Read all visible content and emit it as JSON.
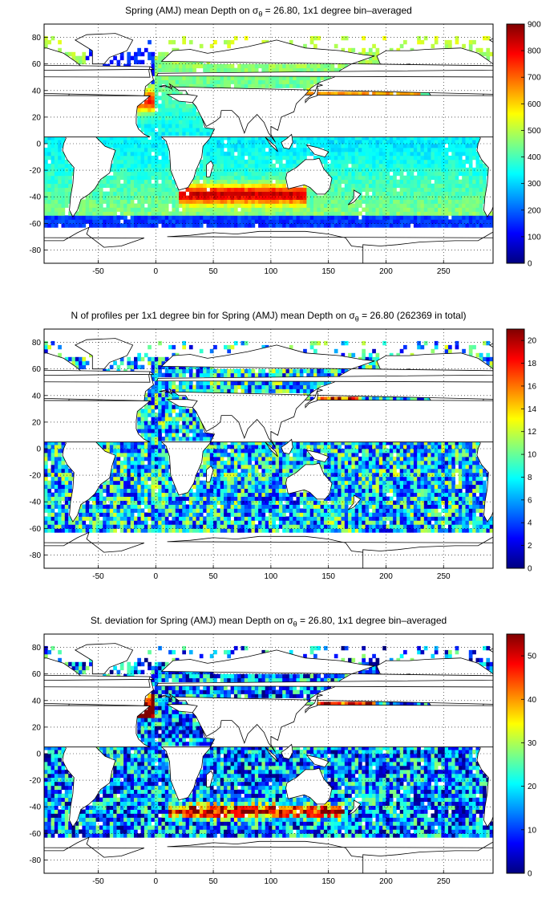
{
  "panels": [
    {
      "title_pre": "Spring (AMJ) mean Depth on σ",
      "title_sub": "θ",
      "title_post": " = 26.80, 1x1 degree bin–averaged",
      "colorbar": {
        "min": 0,
        "max": 900,
        "ticks": [
          "0",
          "100",
          "200",
          "300",
          "400",
          "500",
          "600",
          "700",
          "800",
          "900"
        ]
      }
    },
    {
      "title_pre": "N of profiles per 1x1 degree bin for Spring (AMJ) mean Depth on σ",
      "title_sub": "θ",
      "title_post": " = 26.80 (262369 in total)",
      "colorbar": {
        "min": 0,
        "max": 21,
        "ticks": [
          "0",
          "2",
          "4",
          "6",
          "8",
          "10",
          "12",
          "14",
          "16",
          "18",
          "20"
        ]
      }
    },
    {
      "title_pre": "St. deviation for Spring (AMJ) mean Depth on σ",
      "title_sub": "θ",
      "title_post": " = 26.80, 1x1 degree bin–averaged",
      "colorbar": {
        "min": 0,
        "max": 55,
        "ticks": [
          "0",
          "10",
          "20",
          "30",
          "40",
          "50"
        ]
      }
    }
  ],
  "axes": {
    "x_ticks": [
      "-50",
      "0",
      "50",
      "100",
      "150",
      "200",
      "250"
    ],
    "y_ticks": [
      "80",
      "60",
      "40",
      "20",
      "0",
      "-20",
      "-40",
      "-60",
      "-80"
    ],
    "xlim": [
      -97,
      293
    ],
    "ylim": [
      -90,
      90
    ]
  },
  "colors": {
    "land": "#ffffff",
    "coast": "#000000",
    "grid": "#000000"
  }
}
